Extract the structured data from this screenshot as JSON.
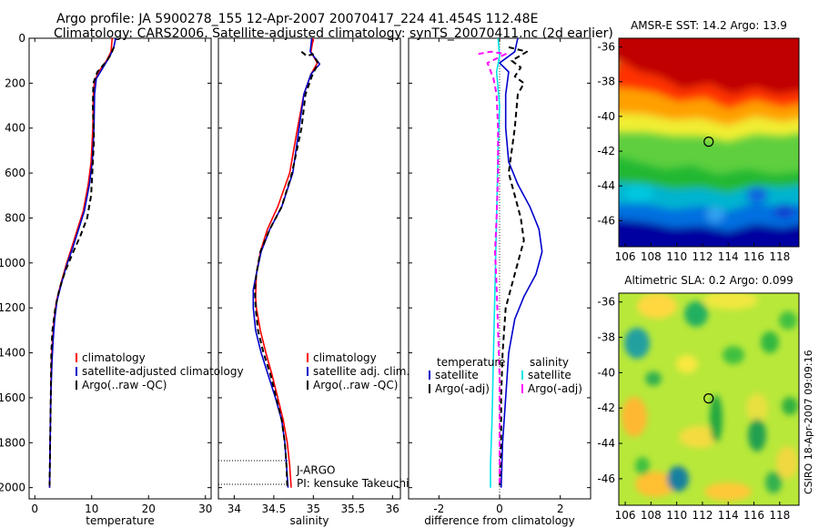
{
  "header": {
    "line1": "Argo profile: JA 5900278_155 12-Apr-2007 20070417_224 41.454S 112.48E",
    "line2": "Climatology: CARS2006. Satellite-adjusted climatology: synTS_20070411.nc (2d earlier)"
  },
  "footer": {
    "credit": "CSIRO 18-Apr-2007 09:09:16"
  },
  "colors": {
    "climatology": "#ff0000",
    "satellite": "#0000cc",
    "argo": "#000000",
    "satellite_salinity": "#00e5e5",
    "argo_adj_salinity": "#ff00ff"
  },
  "chart_data": [
    {
      "type": "line",
      "xlabel": "temperature",
      "xlim": [
        -1,
        31
      ],
      "ylim": [
        2050,
        0
      ],
      "xticks": [
        0,
        10,
        20,
        30
      ],
      "yticks": [
        0,
        200,
        400,
        600,
        800,
        1000,
        1200,
        1400,
        1600,
        1800,
        2000
      ],
      "legend_position": "lower-right",
      "series": [
        {
          "name": "climatology",
          "color": "red",
          "style": "solid",
          "points": [
            [
              13.6,
              0
            ],
            [
              13.4,
              60
            ],
            [
              12.6,
              100
            ],
            [
              11.2,
              150
            ],
            [
              10.5,
              190
            ],
            [
              10.3,
              250
            ],
            [
              10.2,
              400
            ],
            [
              9.9,
              550
            ],
            [
              9.4,
              650
            ],
            [
              8.5,
              770
            ],
            [
              7.5,
              850
            ],
            [
              6.5,
              930
            ],
            [
              5.5,
              1010
            ],
            [
              4.6,
              1090
            ],
            [
              3.8,
              1170
            ],
            [
              3.4,
              1250
            ],
            [
              3.1,
              1350
            ],
            [
              2.9,
              1450
            ],
            [
              2.8,
              1600
            ],
            [
              2.7,
              1800
            ],
            [
              2.6,
              2000
            ]
          ]
        },
        {
          "name": "satellite-adjusted climatology",
          "color": "blue",
          "style": "solid",
          "points": [
            [
              14.2,
              0
            ],
            [
              13.9,
              40
            ],
            [
              13.2,
              80
            ],
            [
              12.0,
              130
            ],
            [
              10.8,
              180
            ],
            [
              10.5,
              250
            ],
            [
              10.4,
              400
            ],
            [
              10.1,
              550
            ],
            [
              9.6,
              650
            ],
            [
              8.7,
              770
            ],
            [
              7.7,
              850
            ],
            [
              6.7,
              930
            ],
            [
              5.6,
              1010
            ],
            [
              4.7,
              1090
            ],
            [
              3.9,
              1170
            ],
            [
              3.5,
              1250
            ],
            [
              3.2,
              1350
            ],
            [
              3.0,
              1450
            ],
            [
              2.8,
              1600
            ],
            [
              2.7,
              1800
            ],
            [
              2.6,
              2000
            ]
          ]
        },
        {
          "name": "Argo(..raw -QC)",
          "color": "black",
          "style": "dashed",
          "points": [
            [
              13.9,
              40
            ],
            [
              13.4,
              70
            ],
            [
              12.7,
              100
            ],
            [
              11.0,
              150
            ],
            [
              10.3,
              200
            ],
            [
              10.2,
              300
            ],
            [
              10.4,
              450
            ],
            [
              10.1,
              600
            ],
            [
              9.9,
              700
            ],
            [
              9.2,
              800
            ],
            [
              8.0,
              880
            ],
            [
              6.6,
              960
            ],
            [
              5.3,
              1040
            ],
            [
              4.3,
              1120
            ],
            [
              3.6,
              1200
            ],
            [
              3.1,
              1300
            ],
            [
              2.9,
              1400
            ],
            [
              2.8,
              1600
            ],
            [
              2.7,
              1800
            ],
            [
              2.6,
              1990
            ]
          ]
        }
      ]
    },
    {
      "type": "line",
      "xlabel": "salinity",
      "xlim": [
        33.8,
        36.1
      ],
      "ylim": [
        2050,
        0
      ],
      "xticks": [
        34,
        34.5,
        35,
        35.5,
        36
      ],
      "legend_position": "lower-right",
      "annotations": [
        "J-ARGO",
        "PI: kensuke Takeuchi"
      ],
      "series": [
        {
          "name": "climatology",
          "color": "red",
          "style": "solid",
          "points": [
            [
              35.0,
              0
            ],
            [
              34.97,
              60
            ],
            [
              35.05,
              110
            ],
            [
              34.97,
              160
            ],
            [
              34.88,
              250
            ],
            [
              34.8,
              400
            ],
            [
              34.7,
              600
            ],
            [
              34.55,
              750
            ],
            [
              34.42,
              850
            ],
            [
              34.33,
              950
            ],
            [
              34.28,
              1050
            ],
            [
              34.27,
              1150
            ],
            [
              34.28,
              1200
            ],
            [
              34.33,
              1300
            ],
            [
              34.4,
              1400
            ],
            [
              34.48,
              1500
            ],
            [
              34.55,
              1600
            ],
            [
              34.62,
              1700
            ],
            [
              34.67,
              1800
            ],
            [
              34.7,
              1900
            ],
            [
              34.72,
              2000
            ]
          ]
        },
        {
          "name": "satellite adj. clim.",
          "color": "blue",
          "style": "solid",
          "points": [
            [
              34.98,
              0
            ],
            [
              34.96,
              60
            ],
            [
              35.08,
              115
            ],
            [
              34.97,
              160
            ],
            [
              34.88,
              250
            ],
            [
              34.82,
              400
            ],
            [
              34.74,
              600
            ],
            [
              34.6,
              750
            ],
            [
              34.45,
              850
            ],
            [
              34.34,
              950
            ],
            [
              34.28,
              1050
            ],
            [
              34.24,
              1120
            ],
            [
              34.24,
              1200
            ],
            [
              34.27,
              1300
            ],
            [
              34.34,
              1400
            ],
            [
              34.43,
              1500
            ],
            [
              34.52,
              1600
            ],
            [
              34.6,
              1700
            ],
            [
              34.64,
              1800
            ],
            [
              34.66,
              1900
            ],
            [
              34.68,
              2000
            ]
          ]
        },
        {
          "name": "Argo(..raw -QC)",
          "color": "black",
          "style": "dashed",
          "points": [
            [
              34.85,
              60
            ],
            [
              34.92,
              80
            ],
            [
              34.99,
              70
            ],
            [
              35.06,
              110
            ],
            [
              34.98,
              170
            ],
            [
              34.9,
              250
            ],
            [
              34.85,
              400
            ],
            [
              34.73,
              600
            ],
            [
              34.6,
              750
            ],
            [
              34.45,
              850
            ],
            [
              34.33,
              950
            ],
            [
              34.28,
              1050
            ],
            [
              34.26,
              1120
            ],
            [
              34.27,
              1200
            ],
            [
              34.3,
              1300
            ],
            [
              34.37,
              1400
            ],
            [
              34.46,
              1500
            ],
            [
              34.53,
              1600
            ],
            [
              34.6,
              1700
            ],
            [
              34.64,
              1800
            ],
            [
              34.66,
              1900
            ],
            [
              34.67,
              2000
            ]
          ]
        }
      ]
    },
    {
      "type": "line",
      "xlabel": "difference from climatology",
      "xlim": [
        -3,
        3
      ],
      "ylim": [
        2050,
        0
      ],
      "xticks": [
        -2,
        0,
        2
      ],
      "legend_position": "lower-right",
      "legend_groups": [
        "temperature",
        "salinity"
      ],
      "series": [
        {
          "name": "satellite",
          "group": "temperature",
          "color": "blue",
          "style": "solid",
          "points": [
            [
              0.6,
              0
            ],
            [
              0.5,
              60
            ],
            [
              0.0,
              110
            ],
            [
              0.3,
              150
            ],
            [
              0.2,
              250
            ],
            [
              0.2,
              400
            ],
            [
              0.3,
              550
            ],
            [
              0.6,
              650
            ],
            [
              1.0,
              750
            ],
            [
              1.3,
              850
            ],
            [
              1.4,
              950
            ],
            [
              1.2,
              1050
            ],
            [
              0.8,
              1150
            ],
            [
              0.5,
              1250
            ],
            [
              0.3,
              1400
            ],
            [
              0.2,
              1600
            ],
            [
              0.1,
              1800
            ],
            [
              0.05,
              2000
            ]
          ]
        },
        {
          "name": "Argo(-adj)",
          "group": "temperature",
          "color": "black",
          "style": "dashed",
          "points": [
            [
              0.3,
              40
            ],
            [
              0.9,
              60
            ],
            [
              0.4,
              100
            ],
            [
              0.7,
              130
            ],
            [
              0.5,
              170
            ],
            [
              0.8,
              200
            ],
            [
              0.6,
              250
            ],
            [
              0.5,
              400
            ],
            [
              0.3,
              600
            ],
            [
              0.5,
              700
            ],
            [
              0.7,
              800
            ],
            [
              0.8,
              900
            ],
            [
              0.6,
              1000
            ],
            [
              0.4,
              1100
            ],
            [
              0.2,
              1200
            ],
            [
              0.1,
              1400
            ],
            [
              0.05,
              1600
            ],
            [
              0.05,
              1800
            ],
            [
              0.0,
              1990
            ]
          ]
        },
        {
          "name": "satellite",
          "group": "salinity",
          "color": "cyan",
          "style": "solid",
          "points": [
            [
              -0.05,
              0
            ],
            [
              0.0,
              80
            ],
            [
              -0.1,
              150
            ],
            [
              0.0,
              300
            ],
            [
              -0.05,
              500
            ],
            [
              -0.1,
              800
            ],
            [
              -0.15,
              1100
            ],
            [
              -0.2,
              1400
            ],
            [
              -0.25,
              1700
            ],
            [
              -0.3,
              1900
            ],
            [
              -0.3,
              2000
            ]
          ]
        },
        {
          "name": "Argo(-adj)",
          "group": "salinity",
          "color": "magenta",
          "style": "dashed",
          "points": [
            [
              -0.7,
              70
            ],
            [
              -0.3,
              60
            ],
            [
              0.2,
              70
            ],
            [
              -0.4,
              110
            ],
            [
              -0.2,
              180
            ],
            [
              -0.1,
              250
            ],
            [
              -0.05,
              400
            ],
            [
              -0.05,
              600
            ],
            [
              -0.1,
              800
            ],
            [
              -0.15,
              950
            ],
            [
              -0.1,
              1100
            ],
            [
              -0.05,
              1300
            ],
            [
              0.0,
              1500
            ],
            [
              0.0,
              1700
            ],
            [
              0.0,
              1990
            ]
          ]
        }
      ]
    },
    {
      "type": "heatmap",
      "title": "AMSR-E SST: 14.2 Argo: 13.9",
      "xlim": [
        105.5,
        119.5
      ],
      "ylim": [
        -47.5,
        -35.5
      ],
      "xticks": [
        106,
        108,
        110,
        112,
        114,
        116,
        118
      ],
      "yticks": [
        -36,
        -38,
        -40,
        -42,
        -44,
        -46
      ],
      "marker": {
        "lon": 112.48,
        "lat": -41.454
      }
    },
    {
      "type": "heatmap",
      "title": "Altimetric SLA: 0.2 Argo: 0.099",
      "xlim": [
        105.5,
        119.5
      ],
      "ylim": [
        -47.5,
        -35.5
      ],
      "xticks": [
        106,
        108,
        110,
        112,
        114,
        116,
        118
      ],
      "yticks": [
        -36,
        -38,
        -40,
        -42,
        -44,
        -46
      ],
      "marker": {
        "lon": 112.48,
        "lat": -41.454
      }
    }
  ]
}
